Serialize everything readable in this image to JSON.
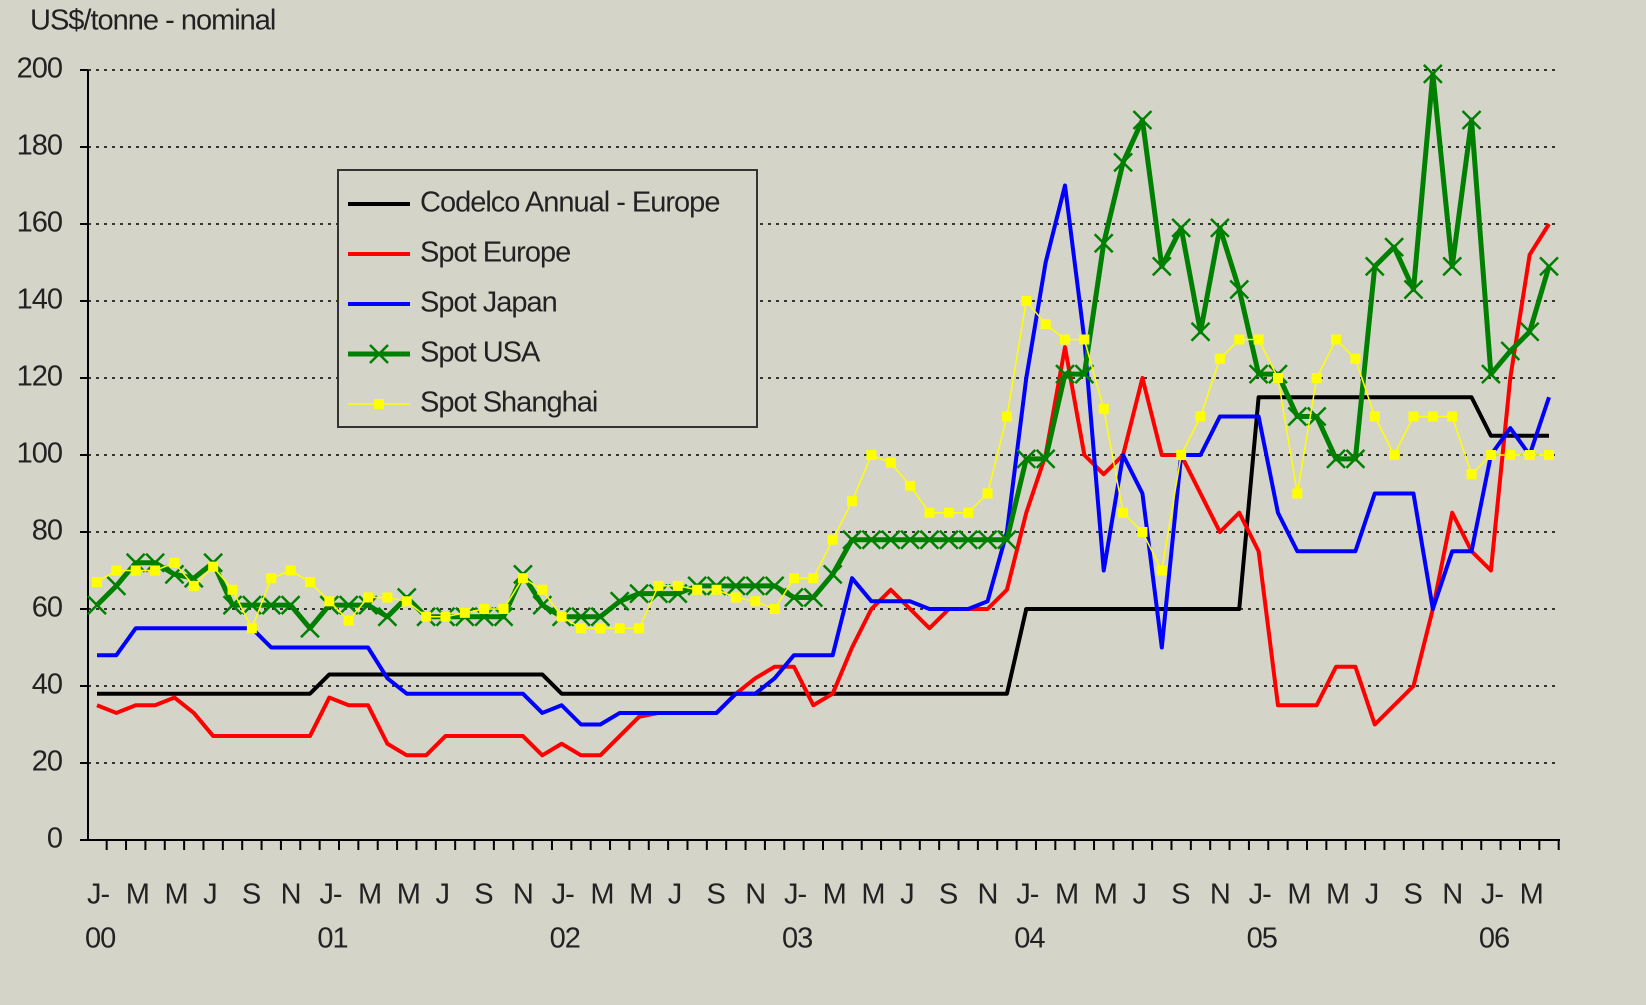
{
  "chart_data": {
    "type": "line",
    "y_axis_label": "US$/tonne - nominal",
    "categories": [
      "J-",
      null,
      "M",
      null,
      "M",
      null,
      "J",
      null,
      "S",
      null,
      "N",
      null,
      "J-",
      null,
      "M",
      null,
      "M",
      null,
      "J",
      null,
      "S",
      null,
      "N",
      null,
      "J-",
      null,
      "M",
      null,
      "M",
      null,
      "J",
      null,
      "S",
      null,
      "N",
      null,
      "J-",
      null,
      "M",
      null,
      "M",
      null,
      "J",
      null,
      "S",
      null,
      "N",
      null,
      "J-",
      null,
      "M",
      null,
      "M",
      null,
      "J",
      null,
      "S",
      null,
      "N",
      null,
      "J-",
      null,
      "M",
      null,
      "M",
      null,
      "J",
      null,
      "S",
      null,
      "N",
      null,
      "J-",
      null,
      "M",
      null
    ],
    "year_labels": [
      "00",
      "01",
      "02",
      "03",
      "04",
      "05",
      "06"
    ],
    "series": [
      {
        "name": "Codelco Annual - Europe",
        "color": "#000000",
        "marker": null,
        "values": [
          38,
          38,
          38,
          38,
          38,
          38,
          38,
          38,
          38,
          38,
          38,
          38,
          43,
          43,
          43,
          43,
          43,
          43,
          43,
          43,
          43,
          43,
          43,
          43,
          38,
          38,
          38,
          38,
          38,
          38,
          38,
          38,
          38,
          38,
          38,
          38,
          38,
          38,
          38,
          38,
          38,
          38,
          38,
          38,
          38,
          38,
          38,
          38,
          60,
          60,
          60,
          60,
          60,
          60,
          60,
          60,
          60,
          60,
          60,
          60,
          115,
          115,
          115,
          115,
          115,
          115,
          115,
          115,
          115,
          115,
          115,
          115,
          105,
          105,
          105,
          105
        ]
      },
      {
        "name": "Spot Europe",
        "color": "#ff0000",
        "marker": null,
        "values": [
          35,
          33,
          35,
          35,
          37,
          33,
          27,
          27,
          27,
          27,
          27,
          27,
          37,
          35,
          35,
          25,
          22,
          22,
          27,
          27,
          27,
          27,
          27,
          22,
          25,
          22,
          22,
          27,
          32,
          33,
          33,
          33,
          33,
          38,
          42,
          45,
          45,
          35,
          38,
          50,
          60,
          65,
          60,
          55,
          60,
          60,
          60,
          65,
          85,
          100,
          128,
          100,
          95,
          100,
          120,
          100,
          100,
          90,
          80,
          85,
          75,
          35,
          35,
          35,
          45,
          45,
          30,
          35,
          40,
          60,
          85,
          75,
          70,
          120,
          152,
          160
        ]
      },
      {
        "name": "Spot Japan",
        "color": "#0000ff",
        "marker": null,
        "values": [
          48,
          48,
          55,
          55,
          55,
          55,
          55,
          55,
          55,
          50,
          50,
          50,
          50,
          50,
          50,
          42,
          38,
          38,
          38,
          38,
          38,
          38,
          38,
          33,
          35,
          30,
          30,
          33,
          33,
          33,
          33,
          33,
          33,
          38,
          38,
          42,
          48,
          48,
          48,
          68,
          62,
          62,
          62,
          60,
          60,
          60,
          62,
          80,
          120,
          150,
          170,
          130,
          70,
          100,
          90,
          50,
          100,
          100,
          110,
          110,
          110,
          85,
          75,
          75,
          75,
          75,
          90,
          90,
          90,
          60,
          75,
          75,
          100,
          107,
          100,
          115
        ]
      },
      {
        "name": "Spot USA",
        "color": "#008000",
        "marker": "x",
        "values": [
          61,
          66,
          72,
          72,
          69,
          68,
          72,
          61,
          61,
          61,
          61,
          55,
          61,
          61,
          61,
          58,
          63,
          58,
          58,
          58,
          58,
          58,
          69,
          61,
          58,
          58,
          58,
          62,
          64,
          64,
          64,
          66,
          66,
          66,
          66,
          66,
          63,
          63,
          69,
          78,
          78,
          78,
          78,
          78,
          78,
          78,
          78,
          78,
          99,
          99,
          121,
          121,
          155,
          176,
          187,
          149,
          159,
          132,
          159,
          143,
          121,
          121,
          110,
          110,
          99,
          99,
          149,
          154,
          143,
          199,
          149,
          187,
          121,
          127,
          132,
          149
        ]
      },
      {
        "name": "Spot Shanghai",
        "color": "#ffff00",
        "marker": "square",
        "values": [
          67,
          70,
          70,
          70,
          72,
          66,
          71,
          65,
          55,
          68,
          70,
          67,
          62,
          57,
          63,
          63,
          62,
          58,
          58,
          59,
          60,
          60,
          68,
          65,
          58,
          55,
          55,
          55,
          55,
          66,
          66,
          65,
          65,
          63,
          62,
          60,
          68,
          68,
          78,
          88,
          100,
          98,
          92,
          85,
          85,
          85,
          90,
          110,
          140,
          134,
          130,
          130,
          112,
          85,
          80,
          70,
          100,
          110,
          125,
          130,
          130,
          120,
          90,
          120,
          130,
          125,
          110,
          100,
          110,
          110,
          110,
          95,
          100,
          100,
          100,
          100
        ]
      }
    ],
    "ylim": [
      0,
      200
    ],
    "yticks": [
      0,
      20,
      40,
      60,
      80,
      100,
      120,
      140,
      160,
      180,
      200
    ],
    "grid": true,
    "legend": "upper left"
  }
}
